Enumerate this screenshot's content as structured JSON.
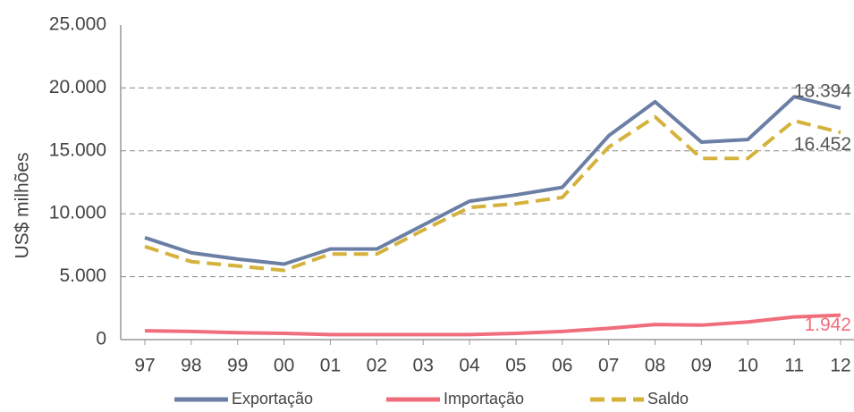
{
  "chart_data": {
    "type": "line",
    "y_label": "US$  milhões",
    "categories": [
      "97",
      "98",
      "99",
      "00",
      "01",
      "02",
      "03",
      "04",
      "05",
      "06",
      "07",
      "08",
      "09",
      "10",
      "11",
      "12"
    ],
    "series": [
      {
        "name": "Exportação",
        "color": "#6b7fa5",
        "style": "solid",
        "values": [
          8100,
          6900,
          6400,
          6000,
          7200,
          7200,
          9100,
          11000,
          11500,
          12100,
          16200,
          18900,
          15700,
          15900,
          19300,
          18394
        ],
        "value_labels": [
          null,
          null,
          null,
          null,
          null,
          null,
          null,
          null,
          null,
          null,
          null,
          null,
          null,
          null,
          null,
          "18.394"
        ]
      },
      {
        "name": "Importação",
        "color": "#f06e7c",
        "style": "solid",
        "values": [
          700,
          650,
          550,
          500,
          400,
          400,
          400,
          400,
          500,
          650,
          900,
          1200,
          1150,
          1400,
          1800,
          1942
        ],
        "value_labels": [
          null,
          null,
          null,
          null,
          null,
          null,
          null,
          null,
          null,
          null,
          null,
          null,
          null,
          null,
          null,
          "1.942"
        ]
      },
      {
        "name": "Saldo",
        "color": "#d4b23c",
        "style": "dashed",
        "values": [
          7400,
          6200,
          5850,
          5500,
          6800,
          6800,
          8700,
          10500,
          10800,
          11300,
          15300,
          17700,
          14400,
          14400,
          17400,
          16452
        ],
        "value_labels": [
          null,
          null,
          null,
          null,
          null,
          null,
          null,
          null,
          null,
          null,
          null,
          null,
          null,
          null,
          null,
          "16.452"
        ]
      }
    ],
    "ylim": [
      0,
      25000
    ],
    "yticks": [
      0,
      {
        "value": 5000,
        "label": "5.000"
      },
      {
        "value": 10000,
        "label": "10.000"
      },
      {
        "value": 15000,
        "label": "15.000"
      },
      {
        "value": 20000,
        "label": "20.000"
      },
      {
        "value": 25000,
        "label": "25.000"
      }
    ],
    "grid": true,
    "legend": "bottom"
  }
}
